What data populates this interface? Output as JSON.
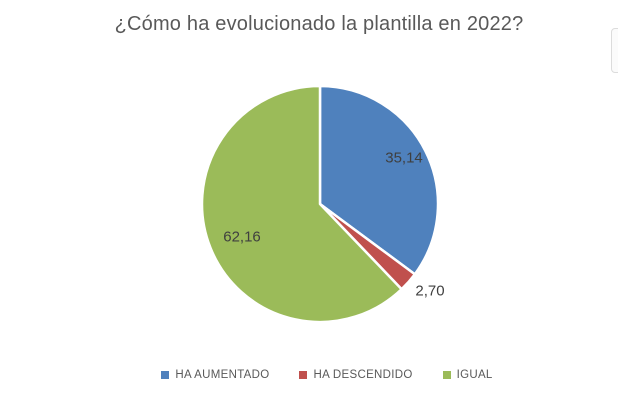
{
  "title": "¿Cómo ha evolucionado la plantilla en 2022?",
  "chart_data": {
    "type": "pie",
    "title": "¿Cómo ha evolucionado la plantilla en 2022?",
    "categories": [
      "HA AUMENTADO",
      "HA DESCENDIDO",
      "IGUAL"
    ],
    "values": [
      35.14,
      2.7,
      62.16
    ],
    "data_labels": [
      "35,14",
      "2,70",
      "62,16"
    ],
    "colors": [
      "#4F81BD",
      "#C0504D",
      "#9BBB59"
    ],
    "start_angle_deg": 0,
    "direction": "clockwise",
    "legend_position": "bottom",
    "slice_border_color": "#ffffff"
  },
  "legend": {
    "items": [
      {
        "label": "HA AUMENTADO",
        "color": "#4F81BD"
      },
      {
        "label": "HA DESCENDIDO",
        "color": "#C0504D"
      },
      {
        "label": "IGUAL",
        "color": "#9BBB59"
      }
    ]
  }
}
